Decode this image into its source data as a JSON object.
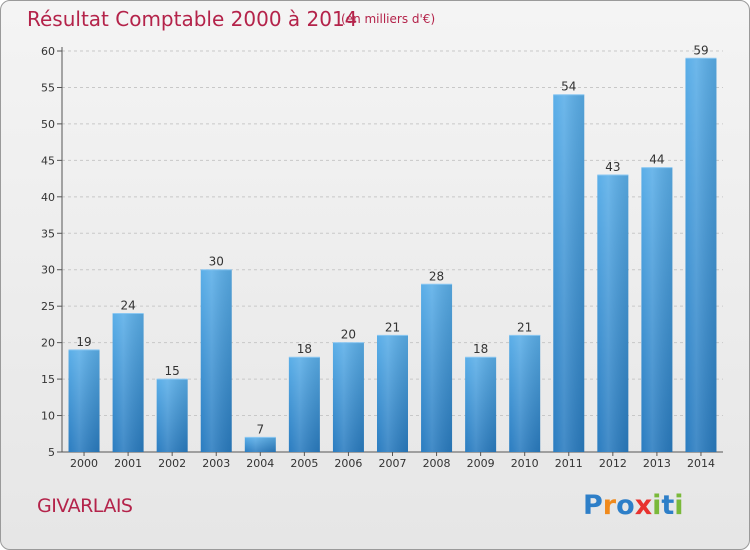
{
  "header": {
    "title": "Résultat Comptable 2000 à 2014",
    "subtitle": "(en milliers d'€)"
  },
  "commune": "GIVARLAIS",
  "logo": {
    "letters": [
      "P",
      "r",
      "o",
      "x",
      "i",
      "t",
      "i"
    ],
    "colors": [
      "#2e7fc8",
      "#f08a1c",
      "#2e7fc8",
      "#e8322f",
      "#7ab93a",
      "#2e7fc8",
      "#7ab93a"
    ]
  },
  "chart_data": {
    "type": "bar",
    "title": "Résultat Comptable 2000 à 2014",
    "subtitle": "(en milliers d'€)",
    "categories": [
      "2000",
      "2001",
      "2002",
      "2003",
      "2004",
      "2005",
      "2006",
      "2007",
      "2008",
      "2009",
      "2010",
      "2011",
      "2012",
      "2013",
      "2014"
    ],
    "values": [
      19,
      24,
      15,
      30,
      7,
      18,
      20,
      21,
      28,
      18,
      21,
      54,
      43,
      44,
      59
    ],
    "ylim": [
      5,
      60
    ],
    "yticks": [
      5,
      10,
      15,
      20,
      25,
      30,
      35,
      40,
      45,
      50,
      55,
      60
    ],
    "grid": "horizontal-dashed",
    "bar_color": "#3d97db",
    "title_color": "#b4234a"
  }
}
